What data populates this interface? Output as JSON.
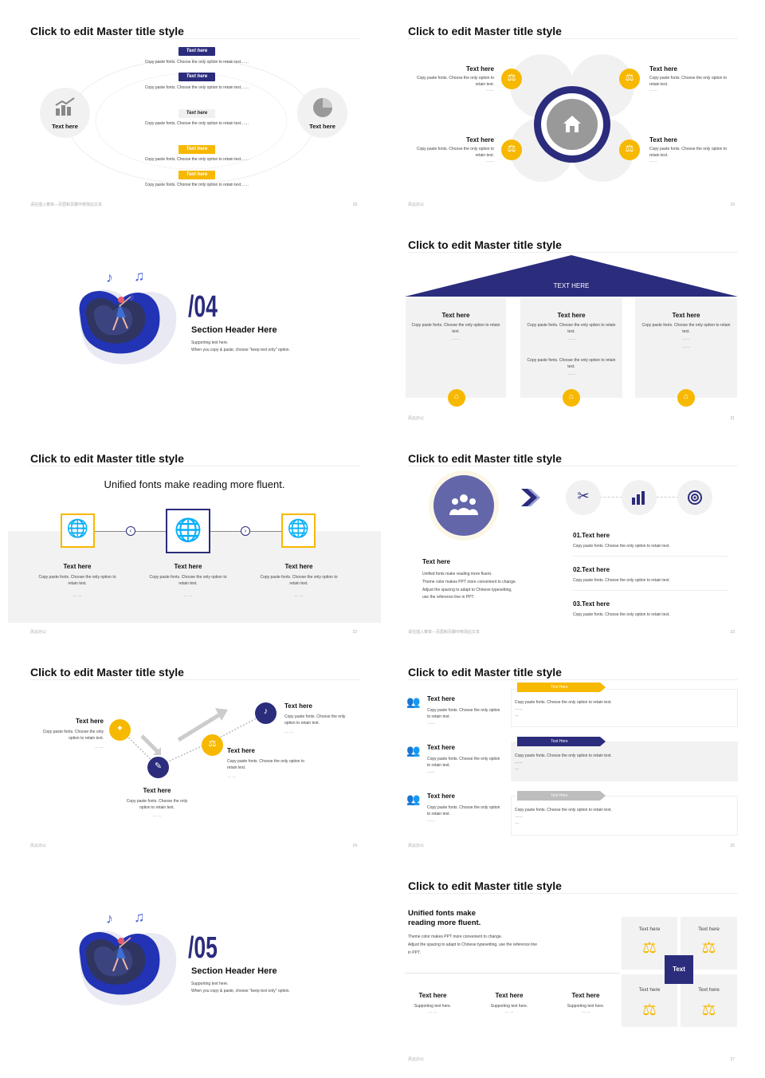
{
  "colors": {
    "navy": "#2b2c7c",
    "yellow": "#f7b800",
    "gray": "#f2f2f2",
    "purple": "#6366a8"
  },
  "master_title": "Click to edit Master title style",
  "footer_cn": "请在插入菜单—页眉和页脚中修改此文本",
  "footer_brand": "风云办公",
  "s18": {
    "left_label": "Text here",
    "right_label": "Text here",
    "left_icon": "bar-chart-growth-icon",
    "right_icon": "pie-chart-icon",
    "items": [
      {
        "tag": "Text here",
        "text": "Copy paste fonts. Choose the only option to retain text……",
        "style": "navy"
      },
      {
        "tag": "Text here",
        "text": "Copy paste fonts. Choose the only option to retain text……",
        "style": "navy"
      },
      {
        "tag": "Text here",
        "text": "Copy paste fonts. Choose the only option to retain text……",
        "style": "light"
      },
      {
        "tag": "Text here",
        "text": "Copy paste fonts. Choose the only option to retain text……",
        "style": "yellow"
      },
      {
        "tag": "Text here",
        "text": "Copy paste fonts. Choose the only option to retain text……",
        "style": "yellow"
      }
    ],
    "page": "18"
  },
  "s19": {
    "center_icon": "house-icon",
    "items": [
      {
        "title": "Text here",
        "text": "Copy paste fonts. Choose the only option to retain text.",
        "dots": "……",
        "icon": "scales-icon"
      },
      {
        "title": "Text here",
        "text": "Copy paste fonts. Choose the only option to retain text.",
        "dots": "……",
        "icon": "scales-icon"
      },
      {
        "title": "Text here",
        "text": "Copy paste fonts. Choose the only option to retain text.",
        "dots": "……",
        "icon": "scales-icon"
      },
      {
        "title": "Text here",
        "text": "Copy paste fonts. Choose the only option to retain text.",
        "dots": "……",
        "icon": "scales-icon"
      }
    ],
    "page": "19"
  },
  "s20": {
    "number": "/04",
    "header": "Section Header Here",
    "support1": "Supporting text here.",
    "support2": "When you copy & paste, choose \"keep text only\" option."
  },
  "s21": {
    "roof_label": "TEXT HERE",
    "cols": [
      {
        "title": "Text here",
        "text": "Copy paste fonts. Choose the only option to retain text.",
        "dots": "……",
        "text2": "",
        "dots2": ""
      },
      {
        "title": "Text here",
        "text": "Copy paste fonts. Choose the only option to retain text.",
        "dots": "……",
        "text2": "Copy paste fonts. Choose the only option to retain text.",
        "dots2": "……"
      },
      {
        "title": "Text here",
        "text": "Copy paste fonts. Choose the only option to retain text.",
        "dots": "……",
        "text2": "",
        "dots2": "……"
      }
    ],
    "page": "21"
  },
  "s22": {
    "subtitle": "Unified fonts make reading more fluent.",
    "cols": [
      {
        "title": "Text here",
        "text": "Copy paste fonts. Choose the only option to retain text.",
        "dots": "… …"
      },
      {
        "title": "Text here",
        "text": "Copy paste fonts. Choose the only option to retain text.",
        "dots": "… …"
      },
      {
        "title": "Text here",
        "text": "Copy paste fonts. Choose the only option to retain text.",
        "dots": "… …"
      }
    ],
    "page": "22"
  },
  "s23": {
    "left_title": "Text here",
    "left_lines": [
      "Unified fonts make reading more fluent.",
      "Theme color makes PPT more convenient to change.",
      "Adjust the spacing to adapt to Chinese typesetting,",
      "use the reference line in PPT."
    ],
    "items": [
      {
        "title": "01.Text here",
        "text": "Copy paste fonts. Choose the only option to retain text."
      },
      {
        "title": "02.Text here",
        "text": "Copy paste fonts. Choose the only option to retain text."
      },
      {
        "title": "03.Text here",
        "text": "Copy paste fonts. Choose the only option to retain text."
      }
    ],
    "page": "23"
  },
  "s24": {
    "items": [
      {
        "title": "Text here",
        "text": "Copy paste fonts. Choose the only option to retain text.",
        "dots": "… …"
      },
      {
        "title": "Text here",
        "text": "Copy paste fonts. Choose the only option to retain text.",
        "dots": "… …"
      },
      {
        "title": "Text here",
        "text": "Copy paste fonts. Choose the only option to retain text.",
        "dots": "… …"
      },
      {
        "title": "Text here",
        "text": "Copy paste fonts. Choose the only option to retain text.",
        "dots": "… …"
      }
    ],
    "page": "24"
  },
  "s25": {
    "rows": [
      {
        "title": "Text here",
        "text": "Copy paste fonts. Choose the only option to retain text.",
        "dots": "……",
        "tag": "Text Here",
        "bullets": [
          "Copy paste fonts. Choose the only option to retain text.",
          "……",
          "…"
        ]
      },
      {
        "title": "Text here",
        "text": "Copy paste fonts. Choose the only option to retain text.",
        "dots": "……",
        "tag": "Text Here",
        "bullets": [
          "Copy paste fonts. Choose the only option to retain text.",
          "……",
          "…"
        ]
      },
      {
        "title": "Text here",
        "text": "Copy paste fonts. Choose the only option to retain text.",
        "dots": "……",
        "tag": "Text Here",
        "bullets": [
          "Copy paste fonts. Choose the only option to retain text.",
          "……",
          "…"
        ]
      }
    ],
    "page": "25"
  },
  "s26": {
    "number": "/05",
    "header": "Section Header Here",
    "support1": "Supporting text here.",
    "support2": "When you copy & paste, choose \"keep text only\" option."
  },
  "s27": {
    "heading1": "Unified fonts make",
    "heading2": "reading more fluent.",
    "line1": "Theme color makes PPT more convenient to change.",
    "line2": "Adjust the spacing to adapt to Chinese typesetting, use the reference line",
    "line3": "in PPT.",
    "cols": [
      {
        "title": "Text here",
        "text": "Supporting text here.",
        "dots": "… …"
      },
      {
        "title": "Text here",
        "text": "Supporting text here.",
        "dots": "… …"
      },
      {
        "title": "Text here",
        "text": "Supporting text here.",
        "dots": "… …"
      }
    ],
    "tiles": [
      "Text here",
      "Text here",
      "Text here",
      "Text here"
    ],
    "center": "Text",
    "page": "27"
  }
}
